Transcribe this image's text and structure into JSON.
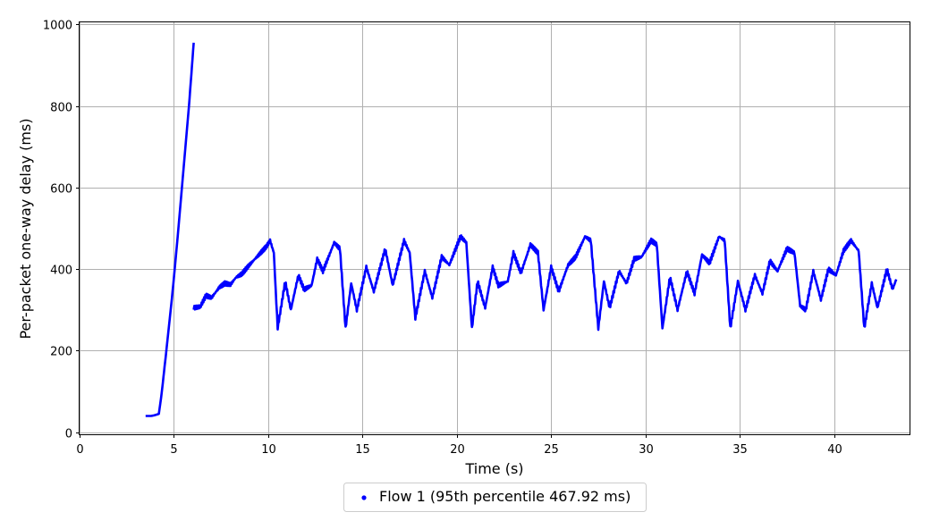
{
  "chart_data": {
    "type": "scatter",
    "title": "",
    "xlabel": "Time (s)",
    "ylabel": "Per-packet one-way delay (ms)",
    "xlim": [
      0,
      44
    ],
    "ylim": [
      -5,
      1005
    ],
    "xticks": [
      0,
      5,
      10,
      15,
      20,
      25,
      30,
      35,
      40
    ],
    "yticks": [
      0,
      200,
      400,
      600,
      800,
      1000
    ],
    "grid": true,
    "legend_position": "bottom-center",
    "series": [
      {
        "name": "Flow 1 (95th percentile 467.92 ms)",
        "color": "#0000ff",
        "segments": [
          [
            [
              3.5,
              40
            ],
            [
              3.8,
              40
            ],
            [
              4.0,
              42
            ],
            [
              4.2,
              45
            ],
            [
              4.35,
              95
            ],
            [
              4.6,
              200
            ],
            [
              4.9,
              330
            ],
            [
              5.2,
              480
            ],
            [
              5.5,
              640
            ],
            [
              5.8,
              800
            ],
            [
              6.05,
              955
            ]
          ],
          [
            [
              6.05,
              305
            ],
            [
              6.4,
              308
            ],
            [
              6.7,
              335
            ],
            [
              7.0,
              330
            ],
            [
              7.4,
              355
            ],
            [
              7.7,
              365
            ],
            [
              8.0,
              362
            ],
            [
              8.3,
              380
            ],
            [
              8.6,
              388
            ],
            [
              9.0,
              410
            ],
            [
              9.3,
              425
            ],
            [
              9.6,
              440
            ],
            [
              9.9,
              455
            ],
            [
              10.1,
              470
            ],
            [
              10.3,
              440
            ],
            [
              10.5,
              255
            ],
            [
              10.9,
              370
            ],
            [
              11.2,
              300
            ],
            [
              11.6,
              385
            ],
            [
              11.9,
              350
            ],
            [
              12.3,
              360
            ],
            [
              12.6,
              425
            ],
            [
              12.9,
              395
            ],
            [
              13.2,
              430
            ],
            [
              13.5,
              465
            ],
            [
              13.8,
              450
            ],
            [
              14.1,
              255
            ],
            [
              14.4,
              365
            ],
            [
              14.7,
              300
            ],
            [
              15.2,
              405
            ],
            [
              15.6,
              345
            ],
            [
              16.2,
              450
            ],
            [
              16.6,
              360
            ],
            [
              17.2,
              470
            ],
            [
              17.5,
              440
            ],
            [
              17.8,
              280
            ],
            [
              18.3,
              395
            ],
            [
              18.7,
              330
            ],
            [
              19.2,
              430
            ],
            [
              19.6,
              410
            ],
            [
              20.2,
              480
            ],
            [
              20.5,
              465
            ],
            [
              20.8,
              255
            ],
            [
              21.1,
              370
            ],
            [
              21.5,
              305
            ],
            [
              21.9,
              405
            ],
            [
              22.2,
              360
            ],
            [
              22.7,
              370
            ],
            [
              23.0,
              440
            ],
            [
              23.4,
              390
            ],
            [
              23.9,
              460
            ],
            [
              24.3,
              440
            ],
            [
              24.6,
              300
            ],
            [
              25.0,
              405
            ],
            [
              25.4,
              345
            ],
            [
              25.9,
              410
            ],
            [
              26.3,
              430
            ],
            [
              26.8,
              480
            ],
            [
              27.1,
              470
            ],
            [
              27.5,
              255
            ],
            [
              27.8,
              370
            ],
            [
              28.1,
              305
            ],
            [
              28.6,
              395
            ],
            [
              29.0,
              365
            ],
            [
              29.4,
              425
            ],
            [
              29.8,
              430
            ],
            [
              30.3,
              470
            ],
            [
              30.6,
              460
            ],
            [
              30.9,
              255
            ],
            [
              31.3,
              380
            ],
            [
              31.7,
              300
            ],
            [
              32.2,
              395
            ],
            [
              32.6,
              340
            ],
            [
              33.0,
              435
            ],
            [
              33.4,
              415
            ],
            [
              33.9,
              480
            ],
            [
              34.2,
              470
            ],
            [
              34.5,
              255
            ],
            [
              34.9,
              370
            ],
            [
              35.3,
              300
            ],
            [
              35.8,
              385
            ],
            [
              36.2,
              340
            ],
            [
              36.6,
              420
            ],
            [
              37.0,
              395
            ],
            [
              37.5,
              450
            ],
            [
              37.9,
              440
            ],
            [
              38.2,
              310
            ],
            [
              38.5,
              300
            ],
            [
              38.9,
              395
            ],
            [
              39.3,
              325
            ],
            [
              39.7,
              400
            ],
            [
              40.1,
              385
            ],
            [
              40.5,
              445
            ],
            [
              40.9,
              470
            ],
            [
              41.3,
              445
            ],
            [
              41.6,
              255
            ],
            [
              42.0,
              365
            ],
            [
              42.3,
              305
            ],
            [
              42.8,
              400
            ],
            [
              43.1,
              350
            ],
            [
              43.3,
              375
            ]
          ]
        ]
      }
    ]
  }
}
